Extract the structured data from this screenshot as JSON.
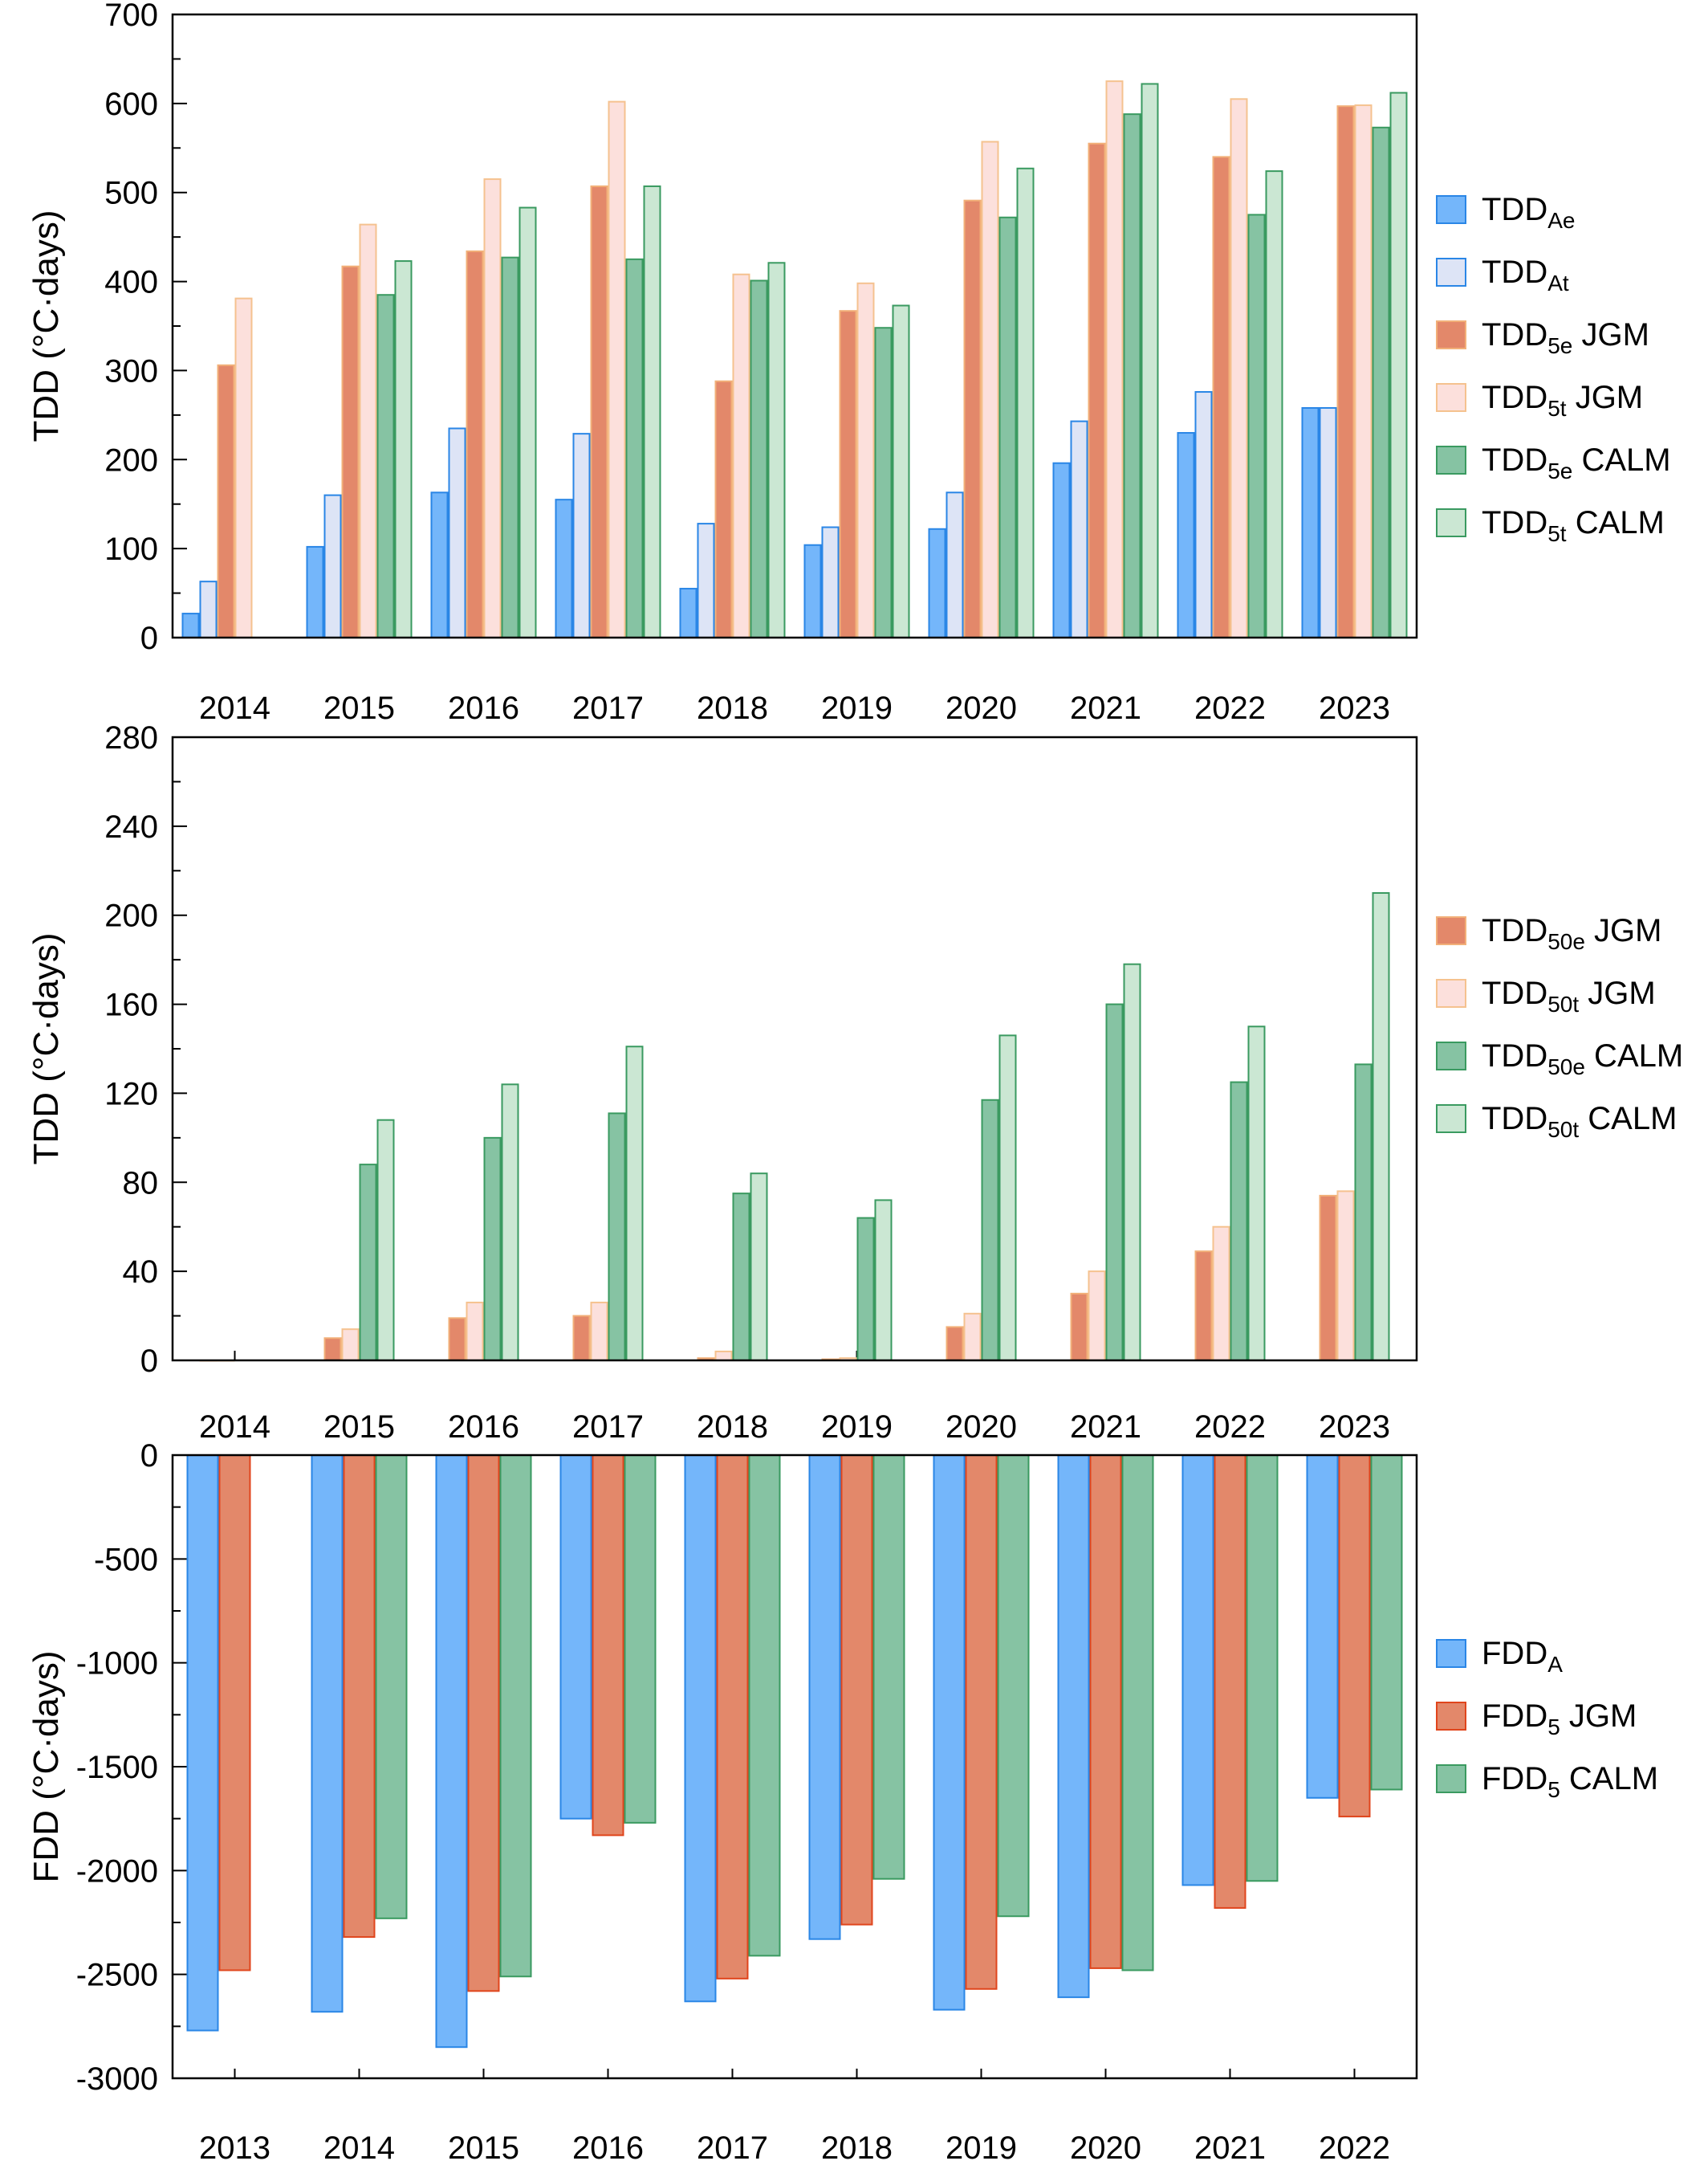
{
  "colors": {
    "air_e_fill": "#74b6fa",
    "air_e_stroke": "#2a86e6",
    "air_t_fill": "#dde4f6",
    "air_t_stroke": "#2a86e6",
    "jgm_e_fill": "#e3886a",
    "jgm_e_stroke": "#f2b079",
    "jgm_t_fill": "#fce0dc",
    "jgm_t_stroke": "#f5c28f",
    "calm_e_fill": "#86c3a3",
    "calm_e_stroke": "#3a9a60",
    "calm_t_fill": "#cbe7d3",
    "calm_t_stroke": "#3a9a60",
    "fdd_jgm_fill": "#e3886a",
    "fdd_jgm_stroke": "#e0451c"
  },
  "chart_data": [
    {
      "type": "bar",
      "ylabel": "TDD (°C·days)",
      "ylim": [
        0,
        700
      ],
      "yticks": [
        "0",
        "100",
        "200",
        "300",
        "400",
        "500",
        "600",
        "700"
      ],
      "categories": [
        "2014",
        "2015",
        "2016",
        "2017",
        "2018",
        "2019",
        "2020",
        "2021",
        "2022",
        "2023"
      ],
      "legend_position": "right",
      "series": [
        {
          "name": "TDD",
          "sub": "Ae",
          "suffix": "",
          "style": "air_e",
          "values": [
            27,
            102,
            163,
            155,
            55,
            104,
            122,
            196,
            230,
            258
          ]
        },
        {
          "name": "TDD",
          "sub": "At",
          "suffix": "",
          "style": "air_t",
          "values": [
            63,
            160,
            235,
            229,
            128,
            124,
            163,
            243,
            276,
            258
          ]
        },
        {
          "name": "TDD",
          "sub": "5e",
          "suffix": " JGM",
          "style": "jgm_e",
          "values": [
            306,
            417,
            434,
            507,
            288,
            367,
            491,
            555,
            540,
            597
          ]
        },
        {
          "name": "TDD",
          "sub": "5t",
          "suffix": " JGM",
          "style": "jgm_t",
          "values": [
            381,
            464,
            515,
            602,
            408,
            398,
            557,
            625,
            605,
            598
          ]
        },
        {
          "name": "TDD",
          "sub": "5e",
          "suffix": " CALM",
          "style": "calm_e",
          "values": [
            null,
            385,
            427,
            425,
            401,
            348,
            472,
            588,
            475,
            573
          ]
        },
        {
          "name": "TDD",
          "sub": "5t",
          "suffix": " CALM",
          "style": "calm_t",
          "values": [
            null,
            423,
            483,
            507,
            421,
            373,
            527,
            622,
            524,
            612
          ]
        }
      ]
    },
    {
      "type": "bar",
      "ylabel": "TDD (°C·days)",
      "ylim": [
        0,
        280
      ],
      "yticks": [
        "0",
        "40",
        "80",
        "120",
        "160",
        "200",
        "240",
        "280"
      ],
      "categories": [
        "2014",
        "2015",
        "2016",
        "2017",
        "2018",
        "2019",
        "2020",
        "2021",
        "2022",
        "2023"
      ],
      "legend_position": "right",
      "series": [
        {
          "name": "TDD",
          "sub": "50e",
          "suffix": " JGM",
          "style": "jgm_e",
          "values": [
            0,
            10,
            19,
            20,
            1,
            0.5,
            15,
            30,
            49,
            74
          ]
        },
        {
          "name": "TDD",
          "sub": "50t",
          "suffix": " JGM",
          "style": "jgm_t",
          "values": [
            0,
            14,
            26,
            26,
            4,
            1,
            21,
            40,
            60,
            76
          ]
        },
        {
          "name": "TDD",
          "sub": "50e",
          "suffix": " CALM",
          "style": "calm_e",
          "values": [
            null,
            88,
            100,
            111,
            75,
            64,
            117,
            160,
            125,
            133
          ]
        },
        {
          "name": "TDD",
          "sub": "50t",
          "suffix": " CALM",
          "style": "calm_t",
          "values": [
            null,
            108,
            124,
            141,
            84,
            72,
            146,
            178,
            150,
            210
          ]
        }
      ]
    },
    {
      "type": "bar",
      "ylabel": "FDD (°C·days)",
      "ylim": [
        -3000,
        0
      ],
      "yticks": [
        "-3000",
        "-2500",
        "-2000",
        "-1500",
        "-1000",
        "-500",
        "0"
      ],
      "categories": [
        "2013",
        "2014",
        "2015",
        "2016",
        "2017",
        "2018",
        "2019",
        "2020",
        "2021",
        "2022"
      ],
      "legend_position": "right",
      "series": [
        {
          "name": "FDD",
          "sub": "A",
          "suffix": "",
          "style": "air_e",
          "values": [
            -2770,
            -2680,
            -2850,
            -1750,
            -2630,
            -2330,
            -2670,
            -2610,
            -2070,
            -1650
          ]
        },
        {
          "name": "FDD",
          "sub": "5",
          "suffix": " JGM",
          "style": "fdd_jgm",
          "values": [
            -2480,
            -2320,
            -2580,
            -1830,
            -2520,
            -2260,
            -2570,
            -2470,
            -2180,
            -1740
          ]
        },
        {
          "name": "FDD",
          "sub": "5",
          "suffix": " CALM",
          "style": "calm_e",
          "values": [
            null,
            -2230,
            -2510,
            -1770,
            -2410,
            -2040,
            -2220,
            -2480,
            -2050,
            -1610
          ]
        }
      ]
    }
  ]
}
